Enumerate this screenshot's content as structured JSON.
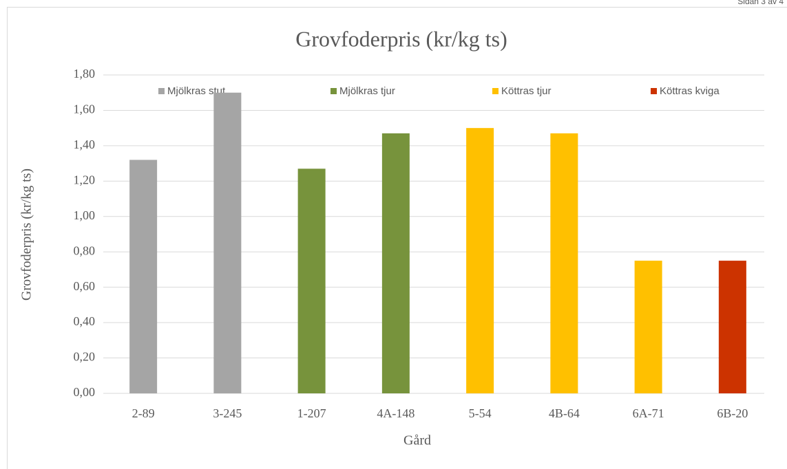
{
  "header": {
    "page": "Sidan 3 av 4"
  },
  "chart_data": {
    "type": "bar",
    "title": "Grovfoderpris (kr/kg ts)",
    "x_label": "Gård",
    "y_label": "Grovfoderpris (kr/kg ts)",
    "categories": [
      "2-89",
      "3-245",
      "1-207",
      "4A-148",
      "5-54",
      "4B-64",
      "6A-71",
      "6B-20"
    ],
    "series": [
      {
        "name": "Mjölkras stut",
        "color": "#a5a5a5",
        "values": [
          1.32,
          1.7,
          null,
          null,
          null,
          null,
          null,
          null
        ]
      },
      {
        "name": "Mjölkras tjur",
        "color": "#77933c",
        "values": [
          null,
          null,
          1.27,
          1.47,
          null,
          null,
          null,
          null
        ]
      },
      {
        "name": "Köttras tjur",
        "color": "#ffc000",
        "values": [
          null,
          null,
          null,
          null,
          1.5,
          1.47,
          0.75,
          null
        ]
      },
      {
        "name": "Köttras kviga",
        "color": "#cc3300",
        "values": [
          null,
          null,
          null,
          null,
          null,
          null,
          null,
          0.75
        ]
      }
    ],
    "ylim": [
      0,
      1.8
    ],
    "yticks": [
      {
        "value": 0,
        "label": "0,00"
      },
      {
        "value": 0.2,
        "label": "0,20"
      },
      {
        "value": 0.4,
        "label": "0,40"
      },
      {
        "value": 0.6,
        "label": "0,60"
      },
      {
        "value": 0.8,
        "label": "0,80"
      },
      {
        "value": 1.0,
        "label": "1,00"
      },
      {
        "value": 1.2,
        "label": "1,20"
      },
      {
        "value": 1.4,
        "label": "1,40"
      },
      {
        "value": 1.6,
        "label": "1,60"
      },
      {
        "value": 1.8,
        "label": "1,80"
      }
    ],
    "grid": true,
    "legend": "top"
  }
}
